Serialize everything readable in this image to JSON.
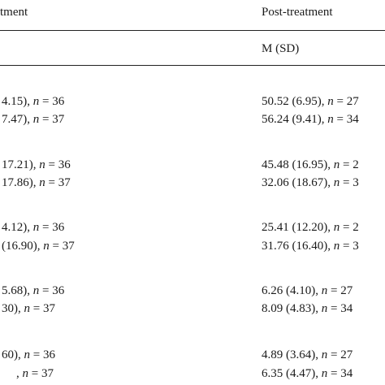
{
  "table": {
    "header": [
      "tment",
      "Post-treatment"
    ],
    "subheader": "M (SD)",
    "rows": [
      [
        "4.15), n = 36",
        "50.52 (6.95), n = 27"
      ],
      [
        "7.47), n = 37",
        "56.24 (9.41), n = 34"
      ],
      [
        "17.21), n = 36",
        "45.48 (16.95), n = 2"
      ],
      [
        "17.86), n = 37",
        "32.06 (18.67), n = 3"
      ],
      [
        "4.12), n = 36",
        "25.41 (12.20), n = 2"
      ],
      [
        "(16.90), n = 37",
        "31.76 (16.40), n = 3"
      ],
      [
        "5.68), n = 36",
        "6.26 (4.10), n = 27"
      ],
      [
        "30), n = 37",
        "8.09 (4.83), n = 34"
      ],
      [
        "60), n = 36",
        "4.89 (3.64), n = 27"
      ],
      [
        ", n = 37",
        "6.35 (4.47), n = 34"
      ]
    ]
  }
}
